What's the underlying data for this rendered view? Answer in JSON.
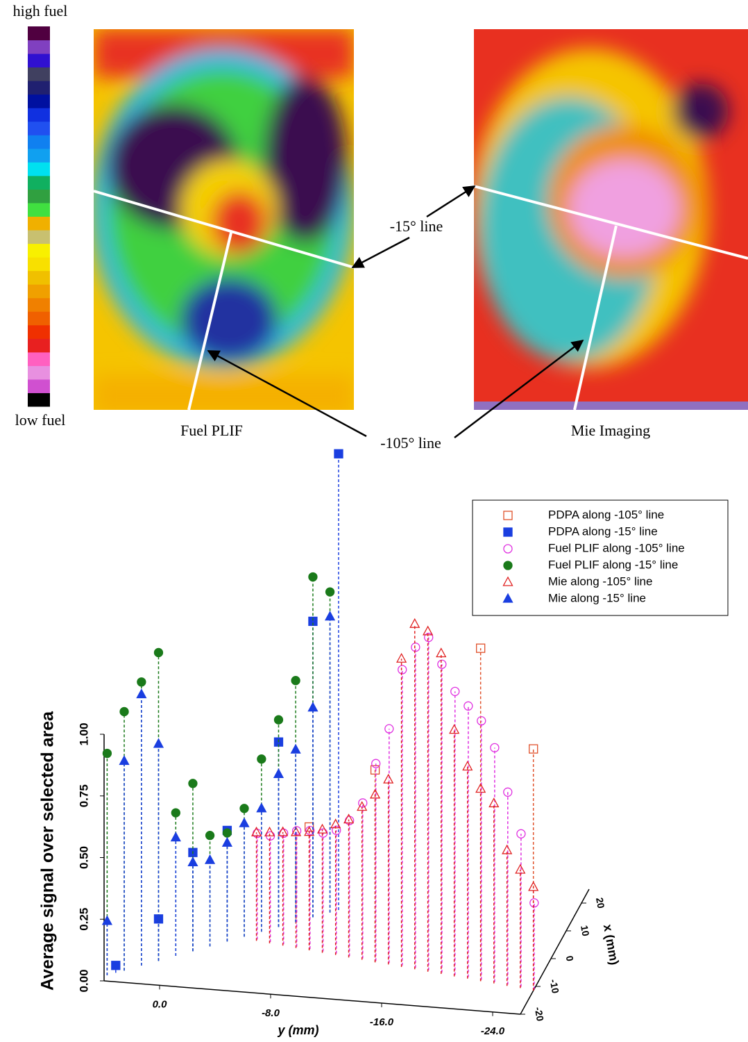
{
  "colorbar": {
    "top_label": "high fuel",
    "bottom_label": "low fuel"
  },
  "images": [
    {
      "caption": "Fuel PLIF"
    },
    {
      "caption": "Mie Imaging"
    }
  ],
  "annotations": [
    "-15° line",
    "-105° line"
  ],
  "chart_data": {
    "type": "scatter3d",
    "xlabel": "x (mm)",
    "ylabel": "y (mm)",
    "zlabel": "Average signal over selected area",
    "xlim": [
      -20,
      25
    ],
    "ylim": [
      4,
      -26
    ],
    "zlim": [
      0,
      1.0
    ],
    "xticks": [
      -20,
      -10,
      0,
      10,
      20
    ],
    "yticks": [
      {
        "value": 0,
        "label": "0.0"
      },
      {
        "value": -8,
        "label": "-8.0"
      },
      {
        "value": -16,
        "label": "-16.0"
      },
      {
        "value": -24,
        "label": "-24.0"
      }
    ],
    "zticks": [
      {
        "value": 0,
        "label": "0.00"
      },
      {
        "value": 0.25,
        "label": "0.25"
      },
      {
        "value": 0.5,
        "label": "0.50"
      },
      {
        "value": 0.75,
        "label": "0.75"
      },
      {
        "value": 1.0,
        "label": "1.00"
      }
    ],
    "legend": "upper right",
    "series": [
      {
        "name": "PDPA along -105° line",
        "color": "#e0502a",
        "marker": "square",
        "filled": false,
        "y": [
          -9,
          -14,
          -22,
          -26
        ],
        "x": [
          -3.8,
          -6.1,
          -9.7,
          -11.5
        ],
        "values": [
          0.5,
          0.78,
          1.35,
          0.98
        ]
      },
      {
        "name": "PDPA along -15° line",
        "color": "#1a3ee0",
        "marker": "square",
        "filled": true,
        "y": [
          3.5,
          1,
          -1,
          -3,
          -6,
          -8,
          -9.5
        ],
        "x": [
          -16.9,
          -11.6,
          -7.3,
          -3,
          3.4,
          7.7,
          10.9
        ],
        "values": [
          0.03,
          0.17,
          0.4,
          0.45,
          0.75,
          1.2,
          1.85
        ]
      },
      {
        "name": "Fuel PLIF along -105° line",
        "color": "#e030e0",
        "marker": "circle",
        "filled": false,
        "y": [
          -5,
          -6,
          -7,
          -8,
          -9,
          -10,
          -11,
          -12,
          -13,
          -14,
          -15,
          -16,
          -17,
          -18,
          -19,
          -20,
          -21,
          -22,
          -23,
          -24,
          -25,
          -26
        ],
        "x": [
          -1.5,
          -2,
          -2.4,
          -2.9,
          -3.3,
          -3.8,
          -4.2,
          -4.7,
          -5.1,
          -5.6,
          -6,
          -6.5,
          -6.9,
          -7.4,
          -7.8,
          -8.3,
          -8.7,
          -9.2,
          -9.6,
          -10.1,
          -10.5,
          -11
        ],
        "values": [
          0.43,
          0.43,
          0.45,
          0.47,
          0.48,
          0.48,
          0.5,
          0.55,
          0.63,
          0.8,
          0.95,
          1.2,
          1.3,
          1.35,
          1.25,
          1.15,
          1.1,
          1.05,
          0.95,
          0.78,
          0.62,
          0.35
        ]
      },
      {
        "name": "Fuel PLIF along -15° line",
        "color": "#1a7a1a",
        "marker": "circle",
        "filled": true,
        "y": [
          4,
          3,
          2,
          1,
          0,
          -1,
          -2,
          -3,
          -4,
          -5,
          -6,
          -7,
          -8,
          -9
        ],
        "x": [
          -18,
          -15.9,
          -13.7,
          -11.6,
          -9.4,
          -7.3,
          -5.2,
          -3,
          -0.9,
          1.3,
          3.4,
          5.5,
          7.7,
          9.8
        ],
        "values": [
          0.9,
          1.05,
          1.15,
          1.25,
          0.58,
          0.68,
          0.45,
          0.44,
          0.52,
          0.7,
          0.84,
          0.98,
          1.38,
          1.3
        ]
      },
      {
        "name": "Mie along -105° line",
        "color": "#e02020",
        "marker": "triangle",
        "filled": false,
        "y": [
          -5,
          -6,
          -7,
          -8,
          -9,
          -10,
          -11,
          -12,
          -13,
          -14,
          -15,
          -16,
          -17,
          -18,
          -19,
          -20,
          -21,
          -22,
          -23,
          -24,
          -25,
          -26
        ],
        "x": [
          -2,
          -2.5,
          -2.9,
          -3.4,
          -3.8,
          -4.3,
          -4.7,
          -5.2,
          -5.6,
          -6.1,
          -6.5,
          -7,
          -7.4,
          -7.9,
          -8.3,
          -8.8,
          -9.2,
          -9.7,
          -10.1,
          -10.6,
          -11,
          -11.5
        ],
        "values": [
          0.44,
          0.45,
          0.46,
          0.47,
          0.48,
          0.5,
          0.53,
          0.56,
          0.62,
          0.68,
          0.75,
          1.25,
          1.4,
          1.38,
          1.3,
          1.0,
          0.86,
          0.78,
          0.73,
          0.55,
          0.48,
          0.42
        ]
      },
      {
        "name": "Mie along -15° line",
        "color": "#1a3ee0",
        "marker": "triangle",
        "filled": true,
        "y": [
          4,
          3,
          2,
          1,
          0,
          -1,
          -2,
          -3,
          -4,
          -5,
          -6,
          -7,
          -8,
          -9
        ],
        "x": [
          -18,
          -15.9,
          -13.7,
          -11.6,
          -9.4,
          -7.3,
          -5.2,
          -3,
          -0.9,
          1.3,
          3.4,
          5.5,
          7.7,
          9.8
        ],
        "values": [
          0.22,
          0.85,
          1.1,
          0.88,
          0.48,
          0.36,
          0.35,
          0.4,
          0.46,
          0.5,
          0.62,
          0.7,
          0.85,
          1.2
        ]
      }
    ]
  }
}
